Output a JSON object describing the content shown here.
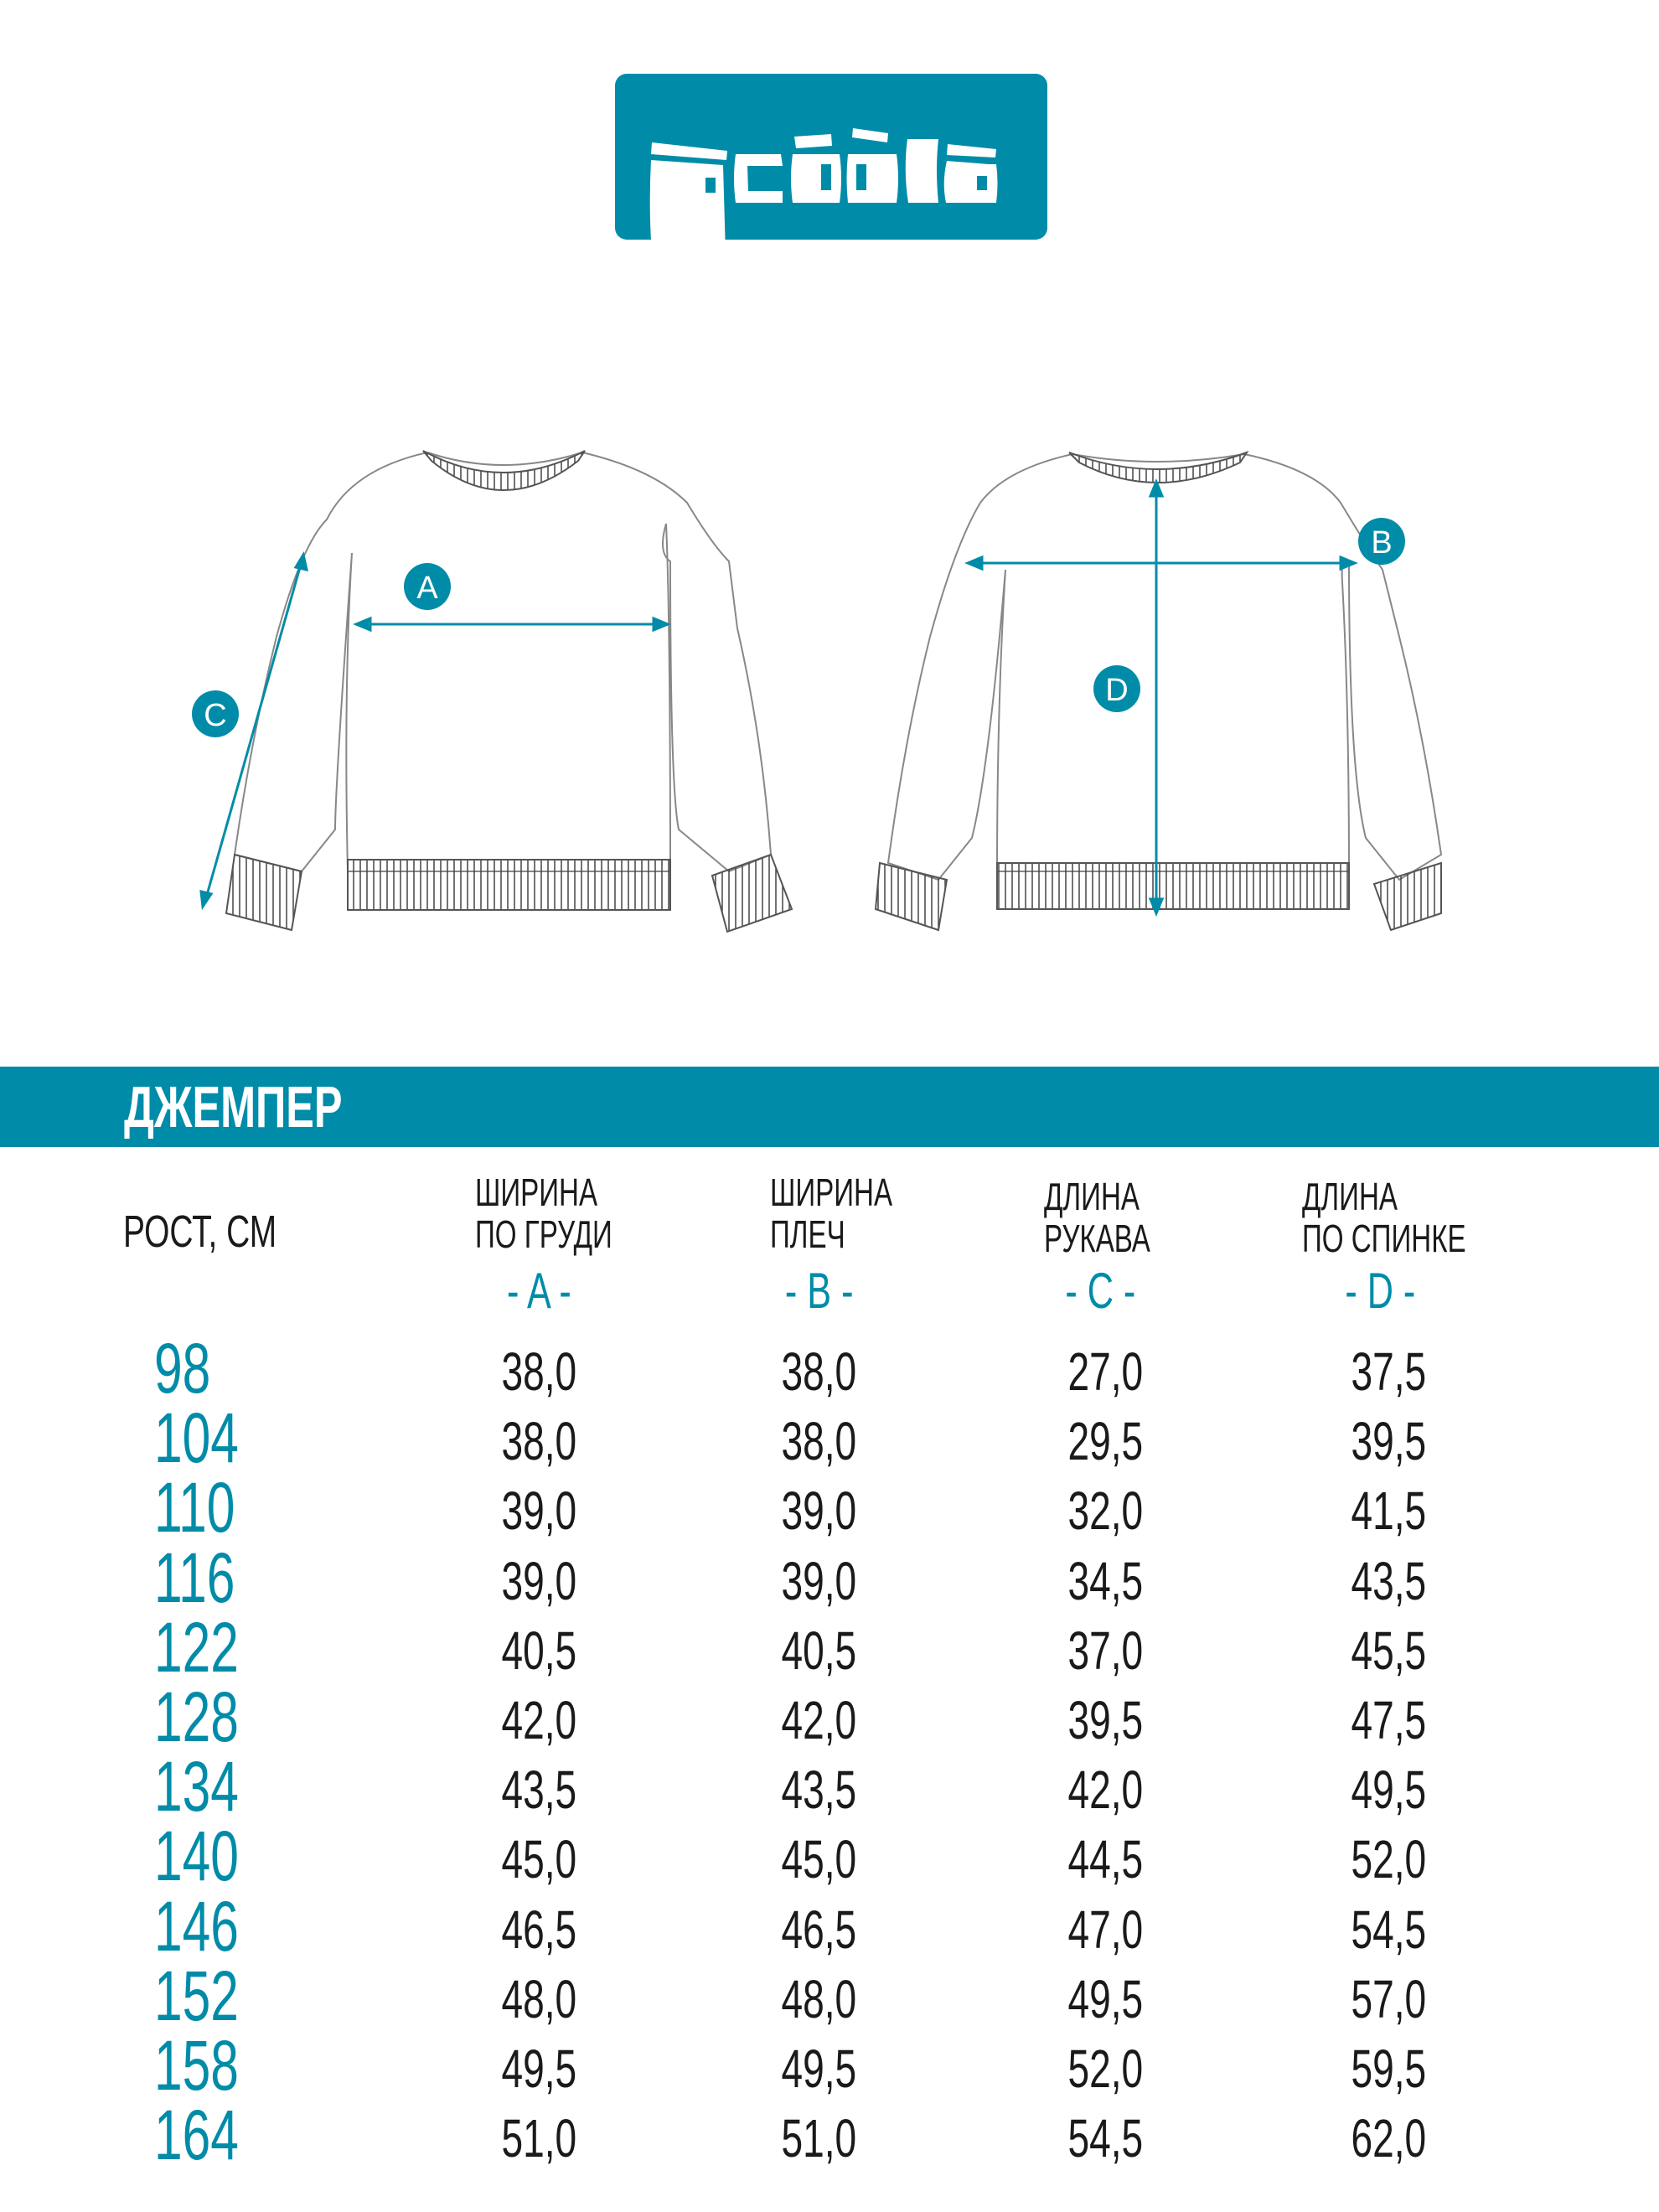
{
  "brand": {
    "logo_text": "acoola",
    "color": "#008ca8"
  },
  "diagram": {
    "markers": [
      "A",
      "B",
      "C",
      "D"
    ]
  },
  "product_title": "ДЖЕМПЕР",
  "table": {
    "height_header": "РОСТ, СМ",
    "columns": [
      {
        "line1": "ШИРИНА",
        "line2": "ПО ГРУДИ",
        "letter": "- A -"
      },
      {
        "line1": "ШИРИНА",
        "line2": "ПЛЕЧ",
        "letter": "- B -"
      },
      {
        "line1": "ДЛИНА",
        "line2": "РУКАВА",
        "letter": "- C -"
      },
      {
        "line1": "ДЛИНА",
        "line2": "ПО СПИНКЕ",
        "letter": "- D -"
      }
    ],
    "rows": [
      {
        "height": "98",
        "values": [
          "38,0",
          "38,0",
          "27,0",
          "37,5"
        ]
      },
      {
        "height": "104",
        "values": [
          "38,0",
          "38,0",
          "29,5",
          "39,5"
        ]
      },
      {
        "height": "110",
        "values": [
          "39,0",
          "39,0",
          "32,0",
          "41,5"
        ]
      },
      {
        "height": "116",
        "values": [
          "39,0",
          "39,0",
          "34,5",
          "43,5"
        ]
      },
      {
        "height": "122",
        "values": [
          "40,5",
          "40,5",
          "37,0",
          "45,5"
        ]
      },
      {
        "height": "128",
        "values": [
          "42,0",
          "42,0",
          "39,5",
          "47,5"
        ]
      },
      {
        "height": "134",
        "values": [
          "43,5",
          "43,5",
          "42,0",
          "49,5"
        ]
      },
      {
        "height": "140",
        "values": [
          "45,0",
          "45,0",
          "44,5",
          "52,0"
        ]
      },
      {
        "height": "146",
        "values": [
          "46,5",
          "46,5",
          "47,0",
          "54,5"
        ]
      },
      {
        "height": "152",
        "values": [
          "48,0",
          "48,0",
          "49,5",
          "57,0"
        ]
      },
      {
        "height": "158",
        "values": [
          "49,5",
          "49,5",
          "52,0",
          "59,5"
        ]
      },
      {
        "height": "164",
        "values": [
          "51,0",
          "51,0",
          "54,5",
          "62,0"
        ]
      }
    ]
  }
}
